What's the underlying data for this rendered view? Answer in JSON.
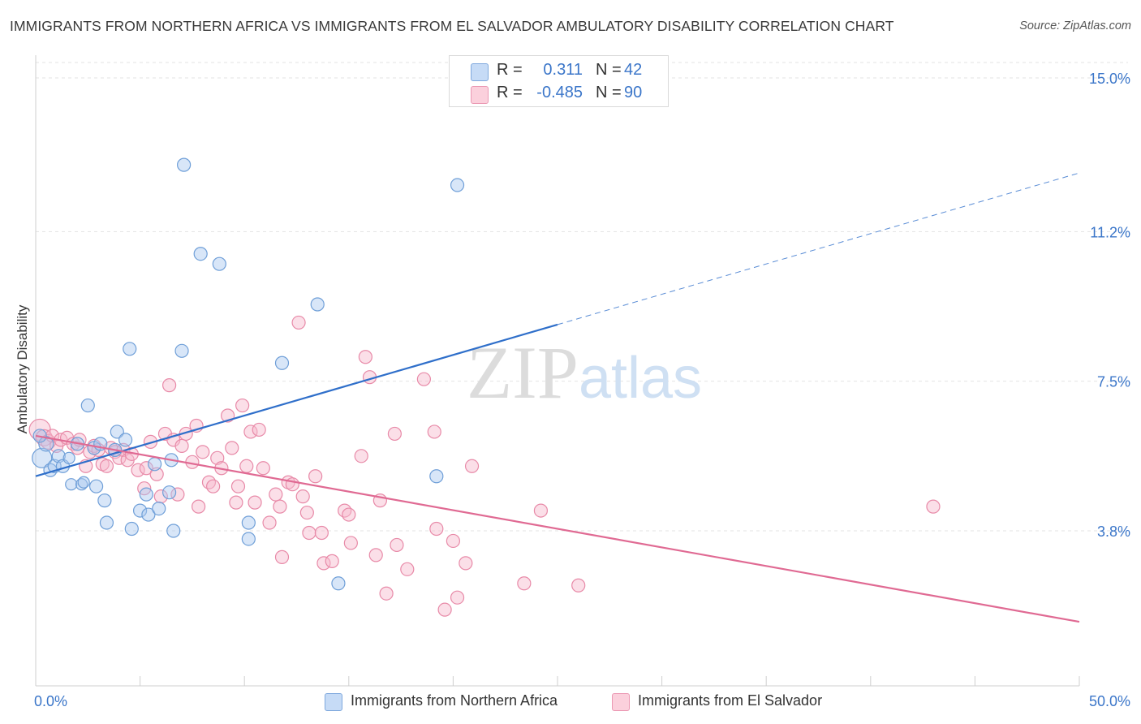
{
  "title": "IMMIGRANTS FROM NORTHERN AFRICA VS IMMIGRANTS FROM EL SALVADOR AMBULATORY DISABILITY CORRELATION CHART",
  "source": "Source: ZipAtlas.com",
  "watermark": "ZIPatlas",
  "legend": {
    "rows": [
      {
        "r_label": "R =",
        "r_value": "0.311",
        "n_label": "N =",
        "n_value": "42",
        "color": "#a9c8f0"
      },
      {
        "r_label": "R =",
        "r_value": "-0.485",
        "n_label": "N =",
        "n_value": "90",
        "color": "#f6b8cb"
      }
    ]
  },
  "bottom_legend": [
    {
      "label": "Immigrants from Northern Africa",
      "color": "#a9c8f0"
    },
    {
      "label": "Immigrants from El Salvador",
      "color": "#f6b8cb"
    }
  ],
  "chart_data": {
    "type": "scatter",
    "title": "IMMIGRANTS FROM NORTHERN AFRICA VS IMMIGRANTS FROM EL SALVADOR AMBULATORY DISABILITY CORRELATION CHART",
    "xlabel": "",
    "ylabel": "Ambulatory Disability",
    "xlim": [
      0,
      50
    ],
    "ylim": [
      0,
      15.6
    ],
    "x_tick_labels": [
      {
        "value": 0,
        "label": "0.0%"
      },
      {
        "value": 50,
        "label": "50.0%"
      }
    ],
    "y_tick_labels": [
      {
        "value": 3.8,
        "label": "3.8%"
      },
      {
        "value": 7.5,
        "label": "7.5%"
      },
      {
        "value": 11.2,
        "label": "11.2%"
      },
      {
        "value": 15.0,
        "label": "15.0%"
      }
    ],
    "grid": "horizontal dashed",
    "legend_position": "top-center",
    "series": [
      {
        "name": "Immigrants from Northern Africa",
        "color": "#a9c8f0",
        "stroke": "#6f9fd8",
        "line_color": "#2f6fca",
        "trend": {
          "x_solid": [
            0,
            25
          ],
          "y_solid": [
            5.15,
            8.9
          ],
          "x_dashed": [
            25,
            50
          ],
          "y_dashed": [
            8.9,
            12.65
          ]
        },
        "points": [
          [
            0.3,
            5.6,
            12
          ],
          [
            0.5,
            5.95,
            9
          ],
          [
            0.7,
            5.3,
            8
          ],
          [
            0.9,
            5.4,
            8
          ],
          [
            1.1,
            5.65,
            8
          ],
          [
            1.3,
            5.4,
            8
          ],
          [
            1.6,
            5.6,
            7
          ],
          [
            1.7,
            4.95,
            7
          ],
          [
            2.0,
            5.95,
            8
          ],
          [
            2.2,
            4.95,
            7
          ],
          [
            2.3,
            5.0,
            7
          ],
          [
            2.5,
            6.9,
            8
          ],
          [
            2.8,
            5.85,
            8
          ],
          [
            2.9,
            4.9,
            8
          ],
          [
            3.1,
            5.95,
            8
          ],
          [
            3.3,
            4.55,
            8
          ],
          [
            3.4,
            4.0,
            8
          ],
          [
            3.8,
            5.8,
            8
          ],
          [
            3.9,
            6.25,
            8
          ],
          [
            4.3,
            6.05,
            8
          ],
          [
            4.5,
            8.3,
            8
          ],
          [
            4.6,
            3.85,
            8
          ],
          [
            5.0,
            4.3,
            8
          ],
          [
            5.3,
            4.7,
            8
          ],
          [
            5.4,
            4.2,
            8
          ],
          [
            5.7,
            5.45,
            8
          ],
          [
            5.9,
            4.35,
            8
          ],
          [
            6.4,
            4.75,
            8
          ],
          [
            6.5,
            5.55,
            8
          ],
          [
            6.6,
            3.8,
            8
          ],
          [
            7.0,
            8.25,
            8
          ],
          [
            7.1,
            12.85,
            8
          ],
          [
            7.9,
            10.65,
            8
          ],
          [
            8.8,
            10.4,
            8
          ],
          [
            10.2,
            4.0,
            8
          ],
          [
            10.2,
            3.6,
            8
          ],
          [
            11.8,
            7.95,
            8
          ],
          [
            13.5,
            9.4,
            8
          ],
          [
            14.5,
            2.5,
            8
          ],
          [
            19.2,
            5.15,
            8
          ],
          [
            20.2,
            12.35,
            8
          ],
          [
            0.2,
            6.15,
            8
          ]
        ]
      },
      {
        "name": "Immigrants from El Salvador",
        "color": "#f6b8cb",
        "stroke": "#e88aa8",
        "line_color": "#e06a93",
        "trend": {
          "x_solid": [
            0,
            50
          ],
          "y_solid": [
            6.15,
            1.55
          ]
        },
        "points": [
          [
            0.2,
            6.3,
            13
          ],
          [
            0.4,
            6.1,
            10
          ],
          [
            0.6,
            6.0,
            9
          ],
          [
            0.8,
            6.15,
            8
          ],
          [
            1.0,
            5.9,
            8
          ],
          [
            1.2,
            6.05,
            8
          ],
          [
            1.5,
            6.1,
            8
          ],
          [
            1.8,
            5.95,
            8
          ],
          [
            2.0,
            5.85,
            8
          ],
          [
            2.1,
            6.05,
            8
          ],
          [
            2.4,
            5.4,
            8
          ],
          [
            2.6,
            5.75,
            8
          ],
          [
            2.8,
            5.9,
            8
          ],
          [
            3.0,
            5.8,
            8
          ],
          [
            3.2,
            5.45,
            8
          ],
          [
            3.4,
            5.4,
            8
          ],
          [
            3.6,
            5.85,
            8
          ],
          [
            3.8,
            5.75,
            8
          ],
          [
            4.0,
            5.6,
            8
          ],
          [
            4.2,
            5.8,
            8
          ],
          [
            4.4,
            5.55,
            8
          ],
          [
            4.6,
            5.7,
            8
          ],
          [
            4.9,
            5.3,
            8
          ],
          [
            5.2,
            4.85,
            8
          ],
          [
            5.3,
            5.35,
            8
          ],
          [
            5.5,
            6.0,
            8
          ],
          [
            5.8,
            5.2,
            8
          ],
          [
            6.0,
            4.65,
            8
          ],
          [
            6.2,
            6.2,
            8
          ],
          [
            6.4,
            7.4,
            8
          ],
          [
            6.6,
            6.05,
            8
          ],
          [
            6.8,
            4.7,
            8
          ],
          [
            7.0,
            5.9,
            8
          ],
          [
            7.2,
            6.2,
            8
          ],
          [
            7.5,
            5.5,
            8
          ],
          [
            7.7,
            6.4,
            8
          ],
          [
            7.8,
            4.4,
            8
          ],
          [
            8.0,
            5.75,
            8
          ],
          [
            8.3,
            5.0,
            8
          ],
          [
            8.5,
            4.9,
            8
          ],
          [
            8.7,
            5.6,
            8
          ],
          [
            8.9,
            5.35,
            8
          ],
          [
            9.2,
            6.65,
            8
          ],
          [
            9.4,
            5.85,
            8
          ],
          [
            9.6,
            4.5,
            8
          ],
          [
            9.7,
            4.9,
            8
          ],
          [
            9.9,
            6.9,
            8
          ],
          [
            10.1,
            5.4,
            8
          ],
          [
            10.3,
            6.25,
            8
          ],
          [
            10.5,
            4.5,
            8
          ],
          [
            10.7,
            6.3,
            8
          ],
          [
            10.9,
            5.35,
            8
          ],
          [
            11.2,
            4.0,
            8
          ],
          [
            11.5,
            4.7,
            8
          ],
          [
            11.7,
            4.4,
            8
          ],
          [
            11.8,
            3.15,
            8
          ],
          [
            12.1,
            5.0,
            8
          ],
          [
            12.3,
            4.95,
            8
          ],
          [
            12.6,
            8.95,
            8
          ],
          [
            12.8,
            4.65,
            8
          ],
          [
            13.0,
            4.25,
            8
          ],
          [
            13.1,
            3.75,
            8
          ],
          [
            13.4,
            5.15,
            8
          ],
          [
            13.7,
            3.75,
            8
          ],
          [
            13.8,
            3.0,
            8
          ],
          [
            14.2,
            3.05,
            8
          ],
          [
            14.8,
            4.3,
            8
          ],
          [
            15.0,
            4.2,
            8
          ],
          [
            15.1,
            3.5,
            8
          ],
          [
            15.6,
            5.65,
            8
          ],
          [
            15.8,
            8.1,
            8
          ],
          [
            16.0,
            7.6,
            8
          ],
          [
            16.3,
            3.2,
            8
          ],
          [
            16.5,
            4.55,
            8
          ],
          [
            16.8,
            2.25,
            8
          ],
          [
            17.2,
            6.2,
            8
          ],
          [
            17.3,
            3.45,
            8
          ],
          [
            17.8,
            2.85,
            8
          ],
          [
            18.6,
            7.55,
            8
          ],
          [
            19.1,
            6.25,
            8
          ],
          [
            19.2,
            3.85,
            8
          ],
          [
            19.6,
            1.85,
            8
          ],
          [
            20.0,
            3.55,
            8
          ],
          [
            20.2,
            2.15,
            8
          ],
          [
            20.6,
            3.0,
            8
          ],
          [
            20.9,
            5.4,
            8
          ],
          [
            23.4,
            2.5,
            8
          ],
          [
            24.2,
            4.3,
            8
          ],
          [
            26.0,
            2.45,
            8
          ],
          [
            43.0,
            4.4,
            8
          ]
        ]
      }
    ]
  }
}
